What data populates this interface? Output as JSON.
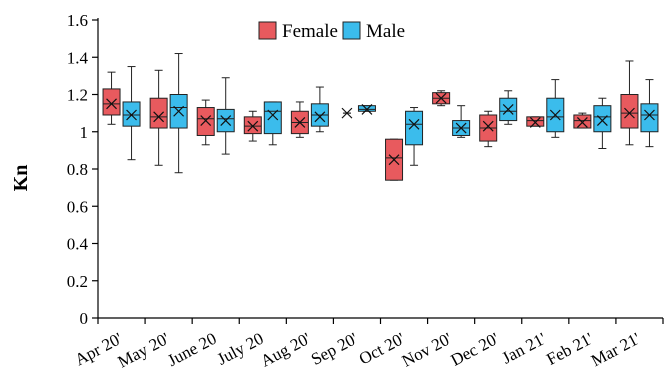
{
  "chart_data": {
    "type": "boxplot",
    "title": "",
    "xlabel": "",
    "ylabel": "Kn",
    "ylim": [
      0,
      1.6
    ],
    "yticks": [
      "0",
      "0.2",
      "0.4",
      "0.6",
      "0.8",
      "1",
      "1.2",
      "1.4",
      "1.6"
    ],
    "grid": false,
    "legend_position": "top-center",
    "categories": [
      "Apr 20'",
      "May 20'",
      "June 20",
      "July 20",
      "Aug 20'",
      "Sep 20'",
      "Oct 20'",
      "Nov 20'",
      "Dec 20'",
      "Jan 21'",
      "Feb 21'",
      "Mar 21'"
    ],
    "series": [
      {
        "name": "Female",
        "color": "#e85a5e",
        "boxes": [
          {
            "min": 1.04,
            "q1": 1.09,
            "median": 1.15,
            "q3": 1.23,
            "max": 1.32,
            "mean": 1.15
          },
          {
            "min": 0.82,
            "q1": 1.02,
            "median": 1.08,
            "q3": 1.18,
            "max": 1.33,
            "mean": 1.08
          },
          {
            "min": 0.93,
            "q1": 0.98,
            "median": 1.07,
            "q3": 1.13,
            "max": 1.17,
            "mean": 1.06
          },
          {
            "min": 0.95,
            "q1": 0.99,
            "median": 1.03,
            "q3": 1.08,
            "max": 1.11,
            "mean": 1.03
          },
          {
            "min": 0.97,
            "q1": 0.99,
            "median": 1.05,
            "q3": 1.11,
            "max": 1.16,
            "mean": 1.05
          },
          {
            "min": 1.1,
            "q1": 1.1,
            "median": 1.1,
            "q3": 1.1,
            "max": 1.1,
            "mean": 1.1
          },
          {
            "min": 0.74,
            "q1": 0.74,
            "median": 0.86,
            "q3": 0.96,
            "max": 0.96,
            "mean": 0.85
          },
          {
            "min": 1.14,
            "q1": 1.15,
            "median": 1.18,
            "q3": 1.21,
            "max": 1.22,
            "mean": 1.18
          },
          {
            "min": 0.92,
            "q1": 0.95,
            "median": 1.02,
            "q3": 1.09,
            "max": 1.11,
            "mean": 1.03
          },
          {
            "min": 1.03,
            "q1": 1.03,
            "median": 1.06,
            "q3": 1.08,
            "max": 1.08,
            "mean": 1.05
          },
          {
            "min": 1.02,
            "q1": 1.02,
            "median": 1.06,
            "q3": 1.09,
            "max": 1.1,
            "mean": 1.05
          },
          {
            "min": 0.93,
            "q1": 1.02,
            "median": 1.1,
            "q3": 1.2,
            "max": 1.38,
            "mean": 1.1
          }
        ]
      },
      {
        "name": "Male",
        "color": "#3bbcec",
        "boxes": [
          {
            "min": 0.85,
            "q1": 1.03,
            "median": 1.09,
            "q3": 1.16,
            "max": 1.35,
            "mean": 1.09
          },
          {
            "min": 0.78,
            "q1": 1.02,
            "median": 1.13,
            "q3": 1.2,
            "max": 1.42,
            "mean": 1.11
          },
          {
            "min": 0.88,
            "q1": 1.0,
            "median": 1.07,
            "q3": 1.12,
            "max": 1.29,
            "mean": 1.06
          },
          {
            "min": 0.93,
            "q1": 0.99,
            "median": 1.11,
            "q3": 1.16,
            "max": 1.16,
            "mean": 1.09
          },
          {
            "min": 1.0,
            "q1": 1.03,
            "median": 1.09,
            "q3": 1.15,
            "max": 1.24,
            "mean": 1.08
          },
          {
            "min": 1.11,
            "q1": 1.11,
            "median": 1.12,
            "q3": 1.14,
            "max": 1.14,
            "mean": 1.12
          },
          {
            "min": 0.82,
            "q1": 0.93,
            "median": 1.04,
            "q3": 1.11,
            "max": 1.13,
            "mean": 1.04
          },
          {
            "min": 0.97,
            "q1": 0.98,
            "median": 1.02,
            "q3": 1.06,
            "max": 1.14,
            "mean": 1.02
          },
          {
            "min": 1.04,
            "q1": 1.06,
            "median": 1.11,
            "q3": 1.18,
            "max": 1.22,
            "mean": 1.12
          },
          {
            "min": 0.97,
            "q1": 1.0,
            "median": 1.08,
            "q3": 1.18,
            "max": 1.28,
            "mean": 1.09
          },
          {
            "min": 0.91,
            "q1": 1.0,
            "median": 1.08,
            "q3": 1.14,
            "max": 1.18,
            "mean": 1.06
          },
          {
            "min": 0.92,
            "q1": 1.0,
            "median": 1.09,
            "q3": 1.15,
            "max": 1.28,
            "mean": 1.09
          }
        ]
      }
    ]
  }
}
